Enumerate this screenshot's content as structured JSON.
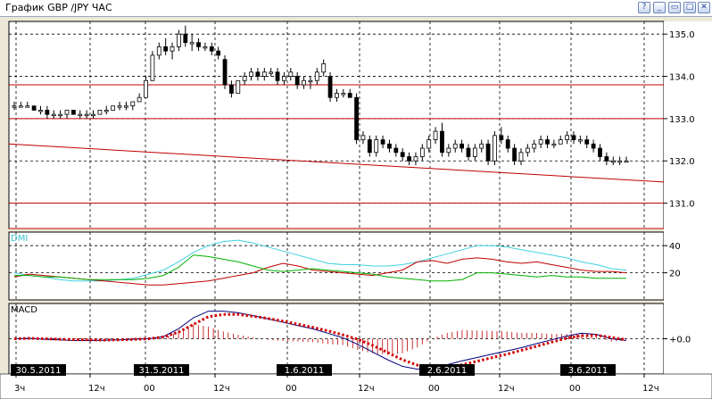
{
  "window": {
    "title": "График GBP /JPY  ЧАС",
    "buttons": [
      {
        "name": "help-button",
        "glyph": "?"
      },
      {
        "name": "minimize-button",
        "glyph": "_"
      },
      {
        "name": "restore-button",
        "glyph": "▭"
      },
      {
        "name": "maximize-button",
        "glyph": "□"
      },
      {
        "name": "close-button",
        "glyph": "✕"
      }
    ]
  },
  "chart_data": [
    {
      "type": "candlestick",
      "title": "",
      "ylim": [
        130.4,
        135.3
      ],
      "y_ticks": [
        "135.0",
        "134.0",
        "133.0",
        "132.0",
        "131.0"
      ],
      "horizontal_levels": [
        133.8,
        133.0,
        131.0,
        130.4
      ],
      "trend_line": {
        "from": 132.4,
        "to": 131.5
      },
      "candles": [
        [
          133.3,
          133.4,
          133.2,
          133.3
        ],
        [
          133.3,
          133.4,
          133.3,
          133.3
        ],
        [
          133.3,
          133.4,
          133.3,
          133.3
        ],
        [
          133.3,
          133.3,
          133.2,
          133.2
        ],
        [
          133.2,
          133.3,
          133.1,
          133.2
        ],
        [
          133.2,
          133.3,
          133.0,
          133.1
        ],
        [
          133.1,
          133.2,
          133.0,
          133.1
        ],
        [
          133.1,
          133.2,
          133.0,
          133.1
        ],
        [
          133.1,
          133.2,
          133.0,
          133.2
        ],
        [
          133.2,
          133.2,
          133.1,
          133.1
        ],
        [
          133.1,
          133.2,
          133.0,
          133.1
        ],
        [
          133.1,
          133.2,
          133.0,
          133.1
        ],
        [
          133.1,
          133.2,
          133.0,
          133.1
        ],
        [
          133.1,
          133.2,
          133.1,
          133.2
        ],
        [
          133.2,
          133.3,
          133.1,
          133.2
        ],
        [
          133.2,
          133.3,
          133.2,
          133.3
        ],
        [
          133.3,
          133.4,
          133.2,
          133.3
        ],
        [
          133.3,
          133.4,
          133.2,
          133.3
        ],
        [
          133.3,
          133.4,
          133.2,
          133.4
        ],
        [
          133.4,
          133.6,
          133.4,
          133.5
        ],
        [
          133.5,
          134.0,
          133.5,
          133.9
        ],
        [
          133.9,
          134.6,
          133.9,
          134.5
        ],
        [
          134.5,
          134.8,
          134.4,
          134.7
        ],
        [
          134.7,
          134.9,
          134.5,
          134.6
        ],
        [
          134.6,
          134.8,
          134.4,
          134.7
        ],
        [
          134.7,
          135.1,
          134.6,
          135.0
        ],
        [
          135.0,
          135.2,
          134.7,
          134.8
        ],
        [
          134.8,
          135.0,
          134.6,
          134.8
        ],
        [
          134.8,
          134.9,
          134.6,
          134.7
        ],
        [
          134.7,
          134.8,
          134.6,
          134.7
        ],
        [
          134.7,
          134.8,
          134.5,
          134.6
        ],
        [
          134.6,
          134.7,
          134.4,
          134.5
        ],
        [
          134.4,
          134.5,
          133.7,
          133.8
        ],
        [
          133.8,
          133.9,
          133.5,
          133.6
        ],
        [
          133.6,
          133.9,
          133.6,
          133.9
        ],
        [
          133.9,
          134.1,
          133.8,
          134.0
        ],
        [
          134.0,
          134.2,
          133.9,
          134.1
        ],
        [
          134.1,
          134.2,
          133.9,
          134.0
        ],
        [
          134.0,
          134.2,
          133.9,
          134.1
        ],
        [
          134.1,
          134.2,
          134.0,
          134.1
        ],
        [
          134.1,
          134.2,
          133.8,
          133.9
        ],
        [
          133.9,
          134.1,
          133.8,
          134.0
        ],
        [
          134.0,
          134.2,
          133.9,
          134.1
        ],
        [
          134.0,
          134.1,
          133.7,
          133.8
        ],
        [
          133.8,
          134.0,
          133.7,
          133.9
        ],
        [
          133.9,
          134.0,
          133.7,
          133.9
        ],
        [
          133.9,
          134.2,
          133.8,
          134.1
        ],
        [
          134.1,
          134.4,
          134.0,
          134.3
        ],
        [
          134.0,
          134.1,
          133.4,
          133.5
        ],
        [
          133.5,
          133.7,
          133.4,
          133.6
        ],
        [
          133.6,
          133.7,
          133.5,
          133.6
        ],
        [
          133.6,
          133.7,
          133.5,
          133.5
        ],
        [
          133.5,
          133.6,
          132.4,
          132.5
        ],
        [
          132.5,
          132.7,
          132.4,
          132.6
        ],
        [
          132.5,
          132.6,
          132.1,
          132.2
        ],
        [
          132.2,
          132.6,
          132.1,
          132.5
        ],
        [
          132.5,
          132.6,
          132.3,
          132.4
        ],
        [
          132.4,
          132.5,
          132.2,
          132.3
        ],
        [
          132.3,
          132.4,
          132.1,
          132.2
        ],
        [
          132.2,
          132.3,
          132.0,
          132.1
        ],
        [
          132.1,
          132.2,
          131.9,
          132.0
        ],
        [
          132.0,
          132.2,
          131.9,
          132.1
        ],
        [
          132.1,
          132.4,
          132.0,
          132.3
        ],
        [
          132.3,
          132.6,
          132.2,
          132.5
        ],
        [
          132.5,
          132.8,
          132.4,
          132.7
        ],
        [
          132.7,
          132.9,
          132.1,
          132.2
        ],
        [
          132.2,
          132.4,
          132.1,
          132.3
        ],
        [
          132.3,
          132.5,
          132.2,
          132.4
        ],
        [
          132.4,
          132.5,
          132.2,
          132.3
        ],
        [
          132.3,
          132.4,
          132.0,
          132.1
        ],
        [
          132.1,
          132.4,
          132.0,
          132.3
        ],
        [
          132.3,
          132.5,
          132.2,
          132.4
        ],
        [
          132.4,
          132.5,
          131.9,
          132.0
        ],
        [
          132.0,
          132.7,
          131.9,
          132.6
        ],
        [
          132.6,
          132.8,
          132.4,
          132.5
        ],
        [
          132.5,
          132.6,
          132.2,
          132.3
        ],
        [
          132.3,
          132.4,
          131.9,
          132.0
        ],
        [
          132.0,
          132.3,
          131.9,
          132.2
        ],
        [
          132.2,
          132.4,
          132.1,
          132.3
        ],
        [
          132.3,
          132.5,
          132.2,
          132.4
        ],
        [
          132.4,
          132.6,
          132.3,
          132.5
        ],
        [
          132.5,
          132.6,
          132.3,
          132.4
        ],
        [
          132.4,
          132.5,
          132.3,
          132.4
        ],
        [
          132.4,
          132.6,
          132.4,
          132.5
        ],
        [
          132.5,
          132.7,
          132.4,
          132.6
        ],
        [
          132.6,
          132.7,
          132.4,
          132.5
        ],
        [
          132.5,
          132.6,
          132.4,
          132.5
        ],
        [
          132.5,
          132.6,
          132.3,
          132.4
        ],
        [
          132.4,
          132.5,
          132.2,
          132.3
        ],
        [
          132.3,
          132.4,
          132.0,
          132.1
        ],
        [
          132.1,
          132.2,
          131.9,
          132.0
        ],
        [
          132.0,
          132.1,
          131.9,
          132.0
        ],
        [
          132.0,
          132.1,
          131.9,
          132.0
        ],
        [
          132.0,
          132.1,
          132.0,
          132.0
        ]
      ]
    },
    {
      "type": "line",
      "title": "DMI",
      "ylim": [
        0,
        50
      ],
      "y_ticks": [
        "40",
        "20"
      ],
      "series": [
        {
          "color": "#40d0e0",
          "values": [
            20,
            18,
            17,
            15,
            14,
            14,
            14,
            15,
            16,
            19,
            22,
            28,
            35,
            40,
            43,
            44,
            42,
            39,
            36,
            33,
            30,
            27,
            26,
            26,
            25,
            25,
            26,
            28,
            31,
            34,
            37,
            40,
            40,
            39,
            37,
            35,
            33,
            31,
            28,
            26,
            23,
            22
          ]
        },
        {
          "color": "#c00000",
          "values": [
            17,
            19,
            18,
            17,
            16,
            15,
            14,
            13,
            12,
            11,
            11,
            12,
            13,
            14,
            16,
            18,
            20,
            24,
            27,
            25,
            22,
            21,
            20,
            19,
            18,
            20,
            22,
            28,
            29,
            27,
            30,
            31,
            30,
            28,
            27,
            28,
            26,
            24,
            22,
            21,
            21,
            20
          ]
        },
        {
          "color": "#00b000",
          "values": [
            18,
            18,
            17,
            17,
            16,
            15,
            15,
            15,
            15,
            16,
            18,
            24,
            33,
            32,
            30,
            28,
            25,
            22,
            21,
            22,
            23,
            22,
            21,
            20,
            19,
            17,
            16,
            15,
            14,
            14,
            15,
            20,
            20,
            19,
            18,
            17,
            18,
            17,
            17,
            16,
            16,
            16
          ]
        }
      ]
    },
    {
      "type": "line",
      "title": "MACD",
      "ylim": [
        -1.6,
        1.6
      ],
      "y_ticks": [
        "+0.0"
      ],
      "series": [
        {
          "color": "#000080",
          "values": [
            0.0,
            0.02,
            -0.02,
            -0.05,
            -0.08,
            -0.08,
            -0.07,
            -0.05,
            -0.02,
            0.0,
            0.1,
            0.45,
            0.95,
            1.25,
            1.25,
            1.18,
            1.05,
            0.9,
            0.75,
            0.6,
            0.45,
            0.25,
            0.05,
            -0.25,
            -0.6,
            -0.95,
            -1.25,
            -1.38,
            -1.32,
            -1.18,
            -1.0,
            -0.85,
            -0.7,
            -0.55,
            -0.4,
            -0.22,
            -0.05,
            0.12,
            0.25,
            0.2,
            0.0,
            -0.08
          ]
        },
        {
          "color": "#d00000",
          "values": [
            0.0,
            0.02,
            0.0,
            -0.02,
            -0.04,
            -0.05,
            -0.06,
            -0.05,
            -0.03,
            0.0,
            0.08,
            0.3,
            0.65,
            1.0,
            1.1,
            1.1,
            1.02,
            0.92,
            0.8,
            0.66,
            0.52,
            0.36,
            0.18,
            -0.02,
            -0.3,
            -0.62,
            -0.95,
            -1.2,
            -1.33,
            -1.3,
            -1.18,
            -1.02,
            -0.86,
            -0.7,
            -0.52,
            -0.34,
            -0.15,
            0.02,
            0.14,
            0.16,
            0.06,
            -0.04
          ]
        }
      ]
    }
  ],
  "time_axis": {
    "date_labels": [
      "30.5.2011",
      "31.5.2011",
      "1.6.2011",
      "2.6.2011",
      "3.6.2011"
    ],
    "hour_labels": [
      "3ч",
      "12ч",
      "00",
      "12ч",
      "00",
      "12ч",
      "00",
      "12ч",
      "00",
      "12ч"
    ]
  }
}
